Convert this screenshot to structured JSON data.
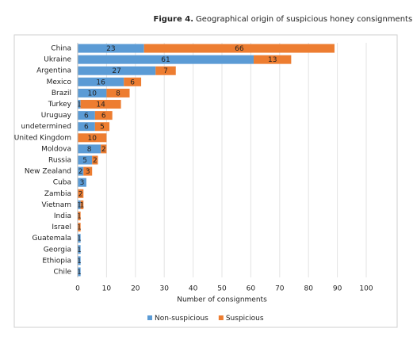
{
  "chart_data": {
    "type": "stacked-barh",
    "figure_label": "Figure 4.",
    "title": "Geographical origin of suspicious honey consignments",
    "x_label": "Number of consignments",
    "categories": [
      "China",
      "Ukraine",
      "Argentina",
      "Mexico",
      "Brazil",
      "Turkey",
      "Uruguay",
      "undetermined",
      "United Kingdom",
      "Moldova",
      "Russia",
      "New Zealand",
      "Cuba",
      "Zambia",
      "Vietnam",
      "India",
      "Israel",
      "Guatemala",
      "Georgia",
      "Ethiopia",
      "Chile"
    ],
    "series": [
      {
        "name": "Non-suspicious",
        "color": "#5b9bd5",
        "values": [
          23,
          61,
          27,
          16,
          10,
          1,
          6,
          6,
          0,
          8,
          5,
          2,
          3,
          0,
          1,
          0,
          0,
          1,
          1,
          1,
          1
        ]
      },
      {
        "name": "Suspicious",
        "color": "#ed7d31",
        "values": [
          66,
          13,
          7,
          6,
          8,
          14,
          6,
          5,
          10,
          2,
          2,
          3,
          0,
          2,
          1,
          1,
          1,
          0,
          0,
          0,
          0
        ]
      }
    ],
    "xlim": [
      0,
      100
    ],
    "xticks": [
      0,
      10,
      20,
      30,
      40,
      50,
      60,
      70,
      80,
      90,
      100
    ],
    "grid": true,
    "legend": "bottom"
  }
}
